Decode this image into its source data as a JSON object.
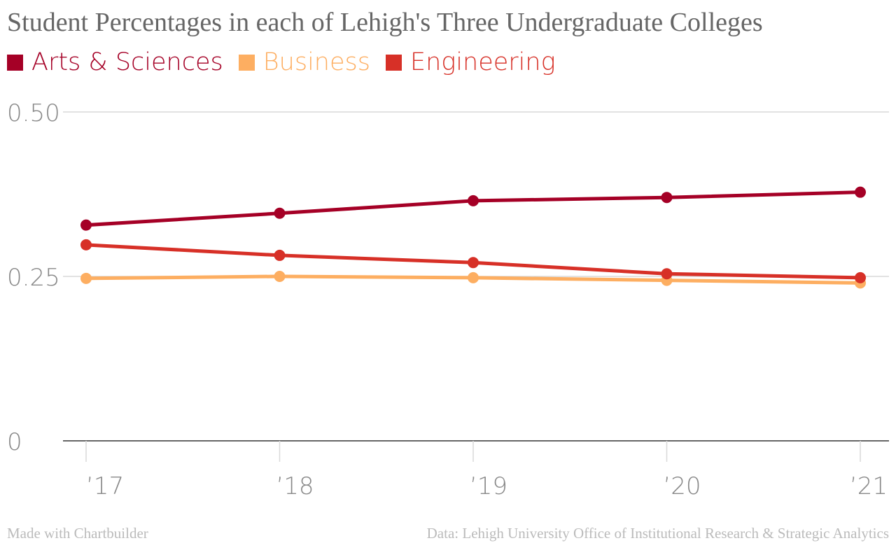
{
  "chart_data": {
    "type": "line",
    "title": "Student Percentages in each of Lehigh's Three Undergraduate Colleges",
    "categories": [
      "’17",
      "’18",
      "’19",
      "’20",
      "’21"
    ],
    "series": [
      {
        "name": "Arts & Sciences",
        "color": "#a50026",
        "values": [
          0.328,
          0.346,
          0.365,
          0.37,
          0.378
        ]
      },
      {
        "name": "Business",
        "color": "#fdae61",
        "values": [
          0.247,
          0.25,
          0.248,
          0.244,
          0.24
        ]
      },
      {
        "name": "Engineering",
        "color": "#d73027",
        "values": [
          0.298,
          0.282,
          0.271,
          0.254,
          0.248
        ]
      }
    ],
    "yticks": [
      {
        "value": 0,
        "label": "0"
      },
      {
        "value": 0.25,
        "label": "0.25"
      },
      {
        "value": 0.5,
        "label": "0.50"
      }
    ],
    "ylim": [
      0,
      0.5
    ],
    "grid": true,
    "legend_position": "top-left"
  },
  "footer": {
    "credit": "Made with Chartbuilder",
    "source": "Data: Lehigh University Office of Institutional Research & Strategic Analytics"
  }
}
